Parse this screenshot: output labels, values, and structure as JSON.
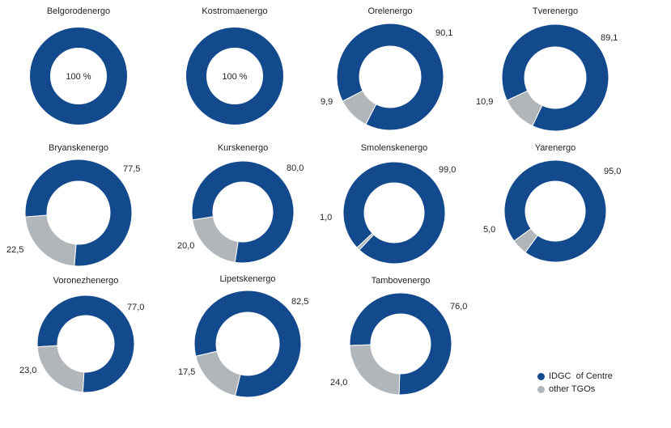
{
  "chart_data": {
    "type": "pie",
    "donut": true,
    "series": [
      {
        "name": "IDGC  of Centre"
      },
      {
        "name": "other TGOs"
      }
    ],
    "colors": {
      "idgc": "#134a8e",
      "other": "#b1b6bb"
    },
    "charts": [
      {
        "title": "Belgorodenergo",
        "values": [
          100,
          0
        ],
        "center_label": "100 %",
        "labels": [
          "",
          ""
        ]
      },
      {
        "title": "Kostromaenergo",
        "values": [
          100,
          0
        ],
        "center_label": "100 %",
        "labels": [
          "",
          ""
        ]
      },
      {
        "title": "Orelenergo",
        "values": [
          90.1,
          9.9
        ],
        "labels": [
          "90,1",
          "9,9"
        ]
      },
      {
        "title": "Tverenergo",
        "values": [
          89.1,
          10.9
        ],
        "labels": [
          "89,1",
          "10,9"
        ]
      },
      {
        "title": "Bryanskenergo",
        "values": [
          77.5,
          22.5
        ],
        "labels": [
          "77,5",
          "22,5"
        ]
      },
      {
        "title": "Kurskenergo",
        "values": [
          80.0,
          20.0
        ],
        "labels": [
          "80,0",
          "20,0"
        ]
      },
      {
        "title": "Smolenskenergo",
        "values": [
          99.0,
          1.0
        ],
        "labels": [
          "99,0",
          "1,0"
        ]
      },
      {
        "title": "Yarenergo",
        "values": [
          95.0,
          5.0
        ],
        "labels": [
          "95,0",
          "5,0"
        ]
      },
      {
        "title": "Voronezhenergo",
        "values": [
          77.0,
          23.0
        ],
        "labels": [
          "77,0",
          "23,0"
        ]
      },
      {
        "title": "Lipetskenergo",
        "values": [
          82.5,
          17.5
        ],
        "labels": [
          "82,5",
          "17,5"
        ]
      },
      {
        "title": "Tambovenergo",
        "values": [
          76.0,
          24.0
        ],
        "labels": [
          "76,0",
          "24,0"
        ]
      }
    ]
  }
}
